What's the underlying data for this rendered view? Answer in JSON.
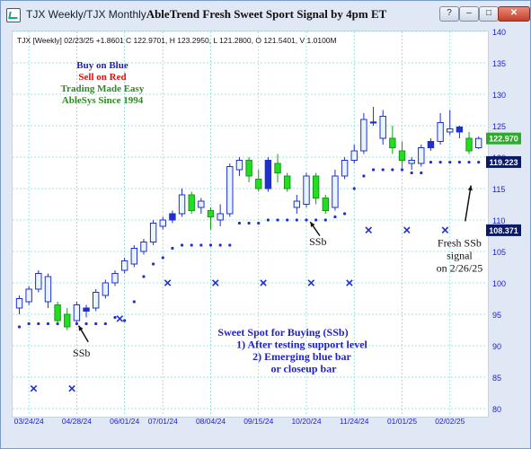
{
  "window": {
    "title": "TJX Weekly/TJX Monthly",
    "buttons": [
      "?",
      "–",
      "□",
      "✕"
    ]
  },
  "header_line": "TJX [Weekly] 02/23/25 +1.8601 C 122.9701, H 123.2950, L 121.2800, O 121.5401, V 1.0100M",
  "legend_text": [
    {
      "text": "Buy on Blue",
      "color": "#1f1fc8"
    },
    {
      "text": "Sell on Red",
      "color": "#e01010"
    },
    {
      "text": "Trading Made Easy",
      "color": "#2e8b20"
    },
    {
      "text": "AbleSys Since 1994",
      "color": "#2e8b20"
    }
  ],
  "colors": {
    "up_bar": "#1f2fd0",
    "down_bar": "#22dd22",
    "neutral_bar": "#e8f4ff",
    "stop_dots": "#1f2fd0",
    "signal_x": "#1f2fd0",
    "grid": "#7ee0e0",
    "axis_text": "#1f1fc8",
    "last_price_bg": "#2faa2f",
    "stop_price_bg": "#0a1a66"
  },
  "chart_data": {
    "type": "candlestick",
    "title": "AbleTrend Fresh Sweet Sport Signal by 4pm ET",
    "xlabel": "",
    "ylabel": "",
    "ylim": [
      80,
      140
    ],
    "yticks": [
      80,
      85,
      90,
      95,
      100,
      105,
      110,
      115,
      120,
      125,
      130,
      135,
      140
    ],
    "xticks": [
      {
        "label": "03/24/24",
        "i": 1
      },
      {
        "label": "04/28/24",
        "i": 6
      },
      {
        "label": "06/01/24",
        "i": 11
      },
      {
        "label": "07/01/24",
        "i": 15
      },
      {
        "label": "08/04/24",
        "i": 20
      },
      {
        "label": "09/15/24",
        "i": 25
      },
      {
        "label": "10/20/24",
        "i": 30
      },
      {
        "label": "11/24/24",
        "i": 35
      },
      {
        "label": "01/01/25",
        "i": 40
      },
      {
        "label": "02/02/25",
        "i": 45
      }
    ],
    "grid": true,
    "candles": [
      {
        "o": 96.0,
        "h": 98.0,
        "l": 95.0,
        "c": 97.5,
        "t": "n"
      },
      {
        "o": 97.0,
        "h": 99.5,
        "l": 96.5,
        "c": 99.0,
        "t": "n"
      },
      {
        "o": 99.0,
        "h": 102.0,
        "l": 98.5,
        "c": 101.5,
        "t": "n"
      },
      {
        "o": 101.0,
        "h": 101.5,
        "l": 96.0,
        "c": 97.0,
        "t": "n"
      },
      {
        "o": 96.5,
        "h": 97.0,
        "l": 93.5,
        "c": 94.0,
        "t": "d"
      },
      {
        "o": 95.0,
        "h": 96.0,
        "l": 92.5,
        "c": 93.0,
        "t": "d"
      },
      {
        "o": 94.0,
        "h": 97.0,
        "l": 93.5,
        "c": 96.5,
        "t": "n"
      },
      {
        "o": 95.5,
        "h": 96.5,
        "l": 94.5,
        "c": 96.0,
        "t": "u"
      },
      {
        "o": 96.0,
        "h": 99.0,
        "l": 95.5,
        "c": 98.5,
        "t": "n"
      },
      {
        "o": 98.0,
        "h": 100.5,
        "l": 97.5,
        "c": 100.0,
        "t": "n"
      },
      {
        "o": 100.0,
        "h": 102.0,
        "l": 99.5,
        "c": 101.5,
        "t": "n"
      },
      {
        "o": 102.0,
        "h": 104.0,
        "l": 101.5,
        "c": 103.5,
        "t": "n"
      },
      {
        "o": 103.0,
        "h": 106.0,
        "l": 102.5,
        "c": 105.5,
        "t": "n"
      },
      {
        "o": 105.0,
        "h": 107.0,
        "l": 104.5,
        "c": 106.5,
        "t": "n"
      },
      {
        "o": 106.5,
        "h": 110.0,
        "l": 106.0,
        "c": 109.5,
        "t": "n"
      },
      {
        "o": 109.0,
        "h": 110.5,
        "l": 108.5,
        "c": 110.0,
        "t": "n"
      },
      {
        "o": 110.0,
        "h": 111.5,
        "l": 109.5,
        "c": 111.0,
        "t": "u"
      },
      {
        "o": 111.0,
        "h": 115.0,
        "l": 110.5,
        "c": 114.0,
        "t": "n"
      },
      {
        "o": 114.0,
        "h": 114.5,
        "l": 111.0,
        "c": 111.5,
        "t": "d"
      },
      {
        "o": 112.0,
        "h": 113.5,
        "l": 111.0,
        "c": 113.0,
        "t": "n"
      },
      {
        "o": 111.5,
        "h": 112.0,
        "l": 108.5,
        "c": 110.5,
        "t": "d"
      },
      {
        "o": 110.0,
        "h": 112.5,
        "l": 109.0,
        "c": 111.0,
        "t": "n"
      },
      {
        "o": 111.0,
        "h": 119.0,
        "l": 110.5,
        "c": 118.5,
        "t": "n"
      },
      {
        "o": 118.0,
        "h": 120.0,
        "l": 117.0,
        "c": 119.5,
        "t": "n"
      },
      {
        "o": 119.5,
        "h": 120.0,
        "l": 116.0,
        "c": 117.0,
        "t": "d"
      },
      {
        "o": 116.5,
        "h": 118.0,
        "l": 114.5,
        "c": 115.0,
        "t": "d"
      },
      {
        "o": 115.0,
        "h": 120.0,
        "l": 114.5,
        "c": 119.5,
        "t": "u"
      },
      {
        "o": 119.0,
        "h": 120.5,
        "l": 116.0,
        "c": 117.5,
        "t": "d"
      },
      {
        "o": 117.0,
        "h": 117.5,
        "l": 114.5,
        "c": 115.0,
        "t": "d"
      },
      {
        "o": 113.0,
        "h": 114.0,
        "l": 111.0,
        "c": 112.0,
        "t": "n"
      },
      {
        "o": 112.5,
        "h": 117.5,
        "l": 112.0,
        "c": 117.0,
        "t": "n"
      },
      {
        "o": 117.0,
        "h": 117.5,
        "l": 112.5,
        "c": 113.5,
        "t": "d"
      },
      {
        "o": 113.5,
        "h": 114.0,
        "l": 111.0,
        "c": 111.5,
        "t": "d"
      },
      {
        "o": 112.0,
        "h": 118.0,
        "l": 111.5,
        "c": 117.0,
        "t": "n"
      },
      {
        "o": 117.0,
        "h": 120.0,
        "l": 116.5,
        "c": 119.5,
        "t": "n"
      },
      {
        "o": 119.5,
        "h": 122.0,
        "l": 119.0,
        "c": 121.0,
        "t": "n"
      },
      {
        "o": 121.0,
        "h": 127.0,
        "l": 120.5,
        "c": 126.0,
        "t": "n"
      },
      {
        "o": 125.5,
        "h": 128.0,
        "l": 125.0,
        "c": 125.6,
        "t": "u"
      },
      {
        "o": 126.5,
        "h": 127.5,
        "l": 122.0,
        "c": 123.0,
        "t": "n"
      },
      {
        "o": 123.0,
        "h": 125.0,
        "l": 120.5,
        "c": 121.5,
        "t": "d"
      },
      {
        "o": 121.0,
        "h": 122.5,
        "l": 118.0,
        "c": 119.5,
        "t": "d"
      },
      {
        "o": 119.5,
        "h": 120.0,
        "l": 118.0,
        "c": 119.0,
        "t": "n"
      },
      {
        "o": 119.0,
        "h": 122.0,
        "l": 118.5,
        "c": 121.5,
        "t": "n"
      },
      {
        "o": 121.5,
        "h": 123.0,
        "l": 121.0,
        "c": 122.5,
        "t": "u"
      },
      {
        "o": 122.5,
        "h": 127.0,
        "l": 122.0,
        "c": 125.5,
        "t": "n"
      },
      {
        "o": 124.5,
        "h": 127.5,
        "l": 123.5,
        "c": 124.0,
        "t": "n"
      },
      {
        "o": 124.0,
        "h": 125.0,
        "l": 123.0,
        "c": 124.8,
        "t": "u"
      },
      {
        "o": 123.0,
        "h": 124.0,
        "l": 120.5,
        "c": 121.0,
        "t": "d"
      },
      {
        "o": 121.5,
        "h": 123.3,
        "l": 121.3,
        "c": 122.97,
        "t": "n"
      }
    ],
    "stop_levels": [
      [
        0,
        93
      ],
      [
        1,
        93.5
      ],
      [
        2,
        93.5
      ],
      [
        3,
        93.5
      ],
      [
        4,
        93.5
      ],
      [
        5,
        93.5
      ],
      [
        6,
        93.5
      ],
      [
        7,
        93.5
      ],
      [
        8,
        93.5
      ],
      [
        9,
        93.5
      ],
      [
        10,
        94.5
      ],
      [
        11,
        94
      ],
      [
        12,
        97
      ],
      [
        13,
        101
      ],
      [
        14,
        103
      ],
      [
        15,
        104
      ],
      [
        16,
        105.5
      ],
      [
        17,
        106
      ],
      [
        18,
        106
      ],
      [
        19,
        106
      ],
      [
        20,
        106
      ],
      [
        21,
        106
      ],
      [
        22,
        106
      ],
      [
        23,
        109.5
      ],
      [
        24,
        109.5
      ],
      [
        25,
        109.5
      ],
      [
        26,
        110
      ],
      [
        27,
        110
      ],
      [
        28,
        110
      ],
      [
        29,
        110
      ],
      [
        30,
        110
      ],
      [
        31,
        110
      ],
      [
        32,
        110
      ],
      [
        33,
        110.5
      ],
      [
        34,
        111
      ],
      [
        35,
        115
      ],
      [
        36,
        117
      ],
      [
        37,
        118
      ],
      [
        38,
        118
      ],
      [
        39,
        118
      ],
      [
        40,
        118
      ],
      [
        41,
        117.5
      ],
      [
        42,
        117.5
      ],
      [
        43,
        119.2
      ],
      [
        44,
        119.2
      ],
      [
        45,
        119.2
      ],
      [
        46,
        119.2
      ],
      [
        47,
        119.2
      ],
      [
        48,
        119.2
      ]
    ],
    "x_markers": [
      {
        "i": 1.5,
        "y": 83.2
      },
      {
        "i": 5.5,
        "y": 83.2
      },
      {
        "i": 10.5,
        "y": 94.3
      },
      {
        "i": 15.5,
        "y": 100
      },
      {
        "i": 20.5,
        "y": 100
      },
      {
        "i": 25.5,
        "y": 100
      },
      {
        "i": 30.5,
        "y": 100
      },
      {
        "i": 34.5,
        "y": 100
      },
      {
        "i": 36.5,
        "y": 108.4
      },
      {
        "i": 40.5,
        "y": 108.4
      },
      {
        "i": 44.5,
        "y": 108.4
      }
    ],
    "price_labels": [
      {
        "text": "122.970",
        "value": 122.97,
        "kind": "last"
      },
      {
        "text": "119.223",
        "value": 119.223,
        "kind": "stop"
      },
      {
        "text": "108.371",
        "value": 108.371,
        "kind": "stop"
      }
    ],
    "annotations": [
      {
        "id": "ssb-1",
        "lines": [
          "SSb"
        ],
        "x_i": 6.5,
        "y": 88.3,
        "arrow_from": [
          7.2,
          90.6
        ],
        "arrow_to": [
          6.2,
          93.2
        ]
      },
      {
        "id": "ssb-2",
        "lines": [
          "SSb"
        ],
        "x_i": 31.2,
        "y": 106.0,
        "arrow_from": [
          31.4,
          107.5
        ],
        "arrow_to": [
          30.4,
          109.7
        ]
      },
      {
        "id": "fresh",
        "lines": [
          "Fresh SSb",
          "signal",
          "on 2/26/25"
        ],
        "x_i": 46.0,
        "y": 105.8,
        "arrow_from": [
          46.6,
          109.8
        ],
        "arrow_to": [
          47.2,
          115.5
        ]
      }
    ],
    "explanation": [
      "Sweet Spot for Buying (SSb)",
      "1) After testing support level",
      "2) Emerging blue bar",
      "or closeup bar"
    ]
  }
}
